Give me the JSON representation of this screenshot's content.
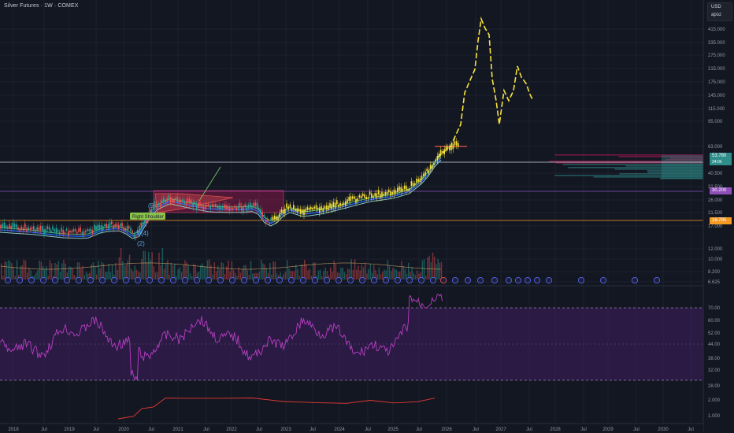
{
  "title": "Silver Futures · 1W · COMEX",
  "currency": "USD",
  "user": "apoz",
  "colors": {
    "bg": "#131722",
    "price": "#f7e23b",
    "rsi": "#b73ec0",
    "rsi_band": "#2a1a40",
    "hline": "#d1d4dc",
    "orange": "#f59a23",
    "purple": "#8e4fb8",
    "teal": "#2f8d8a"
  },
  "price_axis": [
    "415.000",
    "335.000",
    "275.000",
    "215.000",
    "175.000",
    "145.000",
    "115.000",
    "95.000",
    "63.000",
    "40.500",
    "32.500",
    "26.000",
    "21.500",
    "17.000",
    "12.000",
    "10.000",
    "8.200",
    "6.625"
  ],
  "rsi_axis": [
    "70.00",
    "60.00",
    "52.00",
    "44.00",
    "38.00",
    "32.00",
    "28.00",
    "2.000",
    "1.000"
  ],
  "price_labels": [
    {
      "text": "53.780",
      "sub": "34:0h",
      "color": "#2f8d8a"
    },
    {
      "text": "30.200",
      "color": "#8e4fb8"
    },
    {
      "text": "18.795",
      "color": "#f59a23"
    }
  ],
  "time_axis": [
    "2018",
    "Jul",
    "2019",
    "Jul",
    "2020",
    "Jul",
    "2021",
    "Jul",
    "2022",
    "Jul",
    "2023",
    "Jul",
    "2024",
    "Jul",
    "2025",
    "Jul",
    "2026",
    "Jul",
    "2027",
    "Jul",
    "2028",
    "Jul",
    "2029",
    "Jul",
    "2030",
    "Jul"
  ],
  "annotations": {
    "right_shoulder": "Right Shoulder",
    "wave5": "(5",
    "wave4": "(4)",
    "wave2": "(2)",
    "wave3": "3)"
  },
  "chart_data": {
    "type": "line",
    "title": "Silver Futures · 1W · COMEX",
    "y_scale": "log",
    "x": [
      "2018",
      "2019",
      "2020",
      "2021",
      "2022",
      "2023",
      "2024",
      "2025",
      "2026",
      "2027",
      "2028"
    ],
    "series": [
      {
        "values": [
          16.5,
          16.0,
          17.5,
          26.0,
          24.0,
          21.0,
          23.5,
          29.0,
          45.0,
          140.0,
          null
        ]
      }
    ]
  }
}
